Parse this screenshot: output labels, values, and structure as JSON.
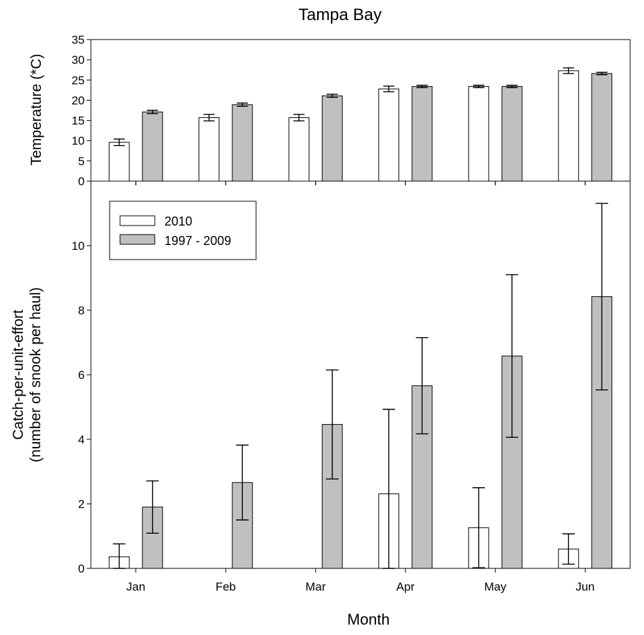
{
  "title": "Tampa Bay",
  "xlabel": "Month",
  "colors": {
    "series_2010": "#ffffff",
    "series_1997_2009": "#c0c0c0",
    "stroke": "#000000"
  },
  "chart_data": [
    {
      "type": "bar",
      "title": "Tampa Bay",
      "ylabel": "Temperature (*C)",
      "ylim": [
        0,
        35
      ],
      "yticks": [
        "0",
        "5",
        "10",
        "15",
        "20",
        "25",
        "30",
        "35"
      ],
      "categories": [
        "Jan",
        "Feb",
        "Mar",
        "Apr",
        "May",
        "Jun"
      ],
      "series": [
        {
          "name": "2010",
          "values": [
            9.6,
            15.7,
            15.7,
            22.8,
            23.4,
            27.3
          ],
          "errors": [
            0.8,
            0.8,
            0.8,
            0.7,
            0.3,
            0.7
          ]
        },
        {
          "name": "1997 - 2009",
          "values": [
            17.1,
            18.9,
            21.1,
            23.4,
            23.4,
            26.6
          ],
          "errors": [
            0.4,
            0.4,
            0.4,
            0.3,
            0.3,
            0.3
          ]
        }
      ]
    },
    {
      "type": "bar",
      "ylabel": "Catch-per-unit-effort",
      "ylabel2": "(number of snook per haul)",
      "xlabel": "Month",
      "ylim": [
        0,
        12
      ],
      "yticks": [
        "0",
        "2",
        "4",
        "6",
        "8",
        "10"
      ],
      "categories": [
        "Jan",
        "Feb",
        "Mar",
        "Apr",
        "May",
        "Jun"
      ],
      "series": [
        {
          "name": "2010",
          "values": [
            0.36,
            0,
            0,
            2.31,
            1.26,
            0.6
          ],
          "errors": [
            0.4,
            0,
            0,
            2.62,
            1.24,
            0.47
          ]
        },
        {
          "name": "1997 - 2009",
          "values": [
            1.9,
            2.66,
            4.46,
            5.66,
            6.58,
            8.42
          ],
          "errors": [
            0.81,
            1.16,
            1.69,
            1.49,
            2.52,
            2.89
          ]
        }
      ],
      "legend": {
        "placement": "top-left",
        "entries": [
          "2010",
          "1997 - 2009"
        ]
      }
    }
  ]
}
